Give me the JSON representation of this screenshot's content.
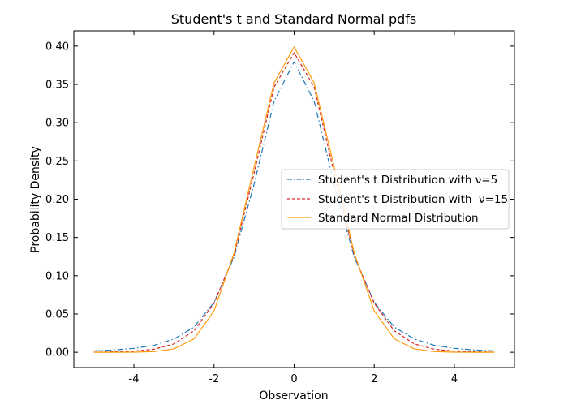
{
  "chart_data": {
    "type": "line",
    "title": "Student's t and Standard Normal pdfs",
    "xlabel": "Observation",
    "ylabel": "Probability Density",
    "xlim": [
      -5.5,
      5.5
    ],
    "ylim": [
      -0.02,
      0.42
    ],
    "x_ticks": [
      -4,
      -2,
      0,
      2,
      4
    ],
    "x_tick_labels": [
      "-4",
      "-2",
      "0",
      "2",
      "4"
    ],
    "y_ticks": [
      0.0,
      0.05,
      0.1,
      0.15,
      0.2,
      0.25,
      0.3,
      0.35,
      0.4
    ],
    "y_tick_labels": [
      "0.00",
      "0.05",
      "0.10",
      "0.15",
      "0.20",
      "0.25",
      "0.30",
      "0.35",
      "0.40"
    ],
    "grid": false,
    "legend_position": "center-right",
    "x": [
      -5,
      -4.5,
      -4,
      -3.5,
      -3,
      -2.5,
      -2,
      -1.5,
      -1,
      -0.5,
      0,
      0.5,
      1,
      1.5,
      2,
      2.5,
      3,
      3.5,
      4,
      4.5,
      5
    ],
    "series": [
      {
        "name": "Student's t Distribution with ν=5",
        "color": "#1f77b4",
        "style": "dashdot",
        "values": [
          0.0018,
          0.003,
          0.0051,
          0.0091,
          0.0173,
          0.0329,
          0.0651,
          0.1245,
          0.2197,
          0.3279,
          0.3796,
          0.3279,
          0.2197,
          0.1245,
          0.0651,
          0.0329,
          0.0173,
          0.0091,
          0.0051,
          0.003,
          0.0018
        ]
      },
      {
        "name": "Student's t Distribution with  ν=15",
        "color": "#d62728",
        "style": "dashed",
        "values": [
          0.0002,
          0.0006,
          0.0015,
          0.004,
          0.0109,
          0.0281,
          0.064,
          0.1268,
          0.234,
          0.3465,
          0.3915,
          0.3465,
          0.234,
          0.1268,
          0.064,
          0.0281,
          0.0109,
          0.004,
          0.0015,
          0.0006,
          0.0002
        ]
      },
      {
        "name": "Standard Normal Distribution",
        "color": "#ff9a0e",
        "style": "solid",
        "values": [
          1.5e-06,
          1.6e-05,
          0.000134,
          0.000873,
          0.00443,
          0.01753,
          0.05399,
          0.12952,
          0.24197,
          0.35207,
          0.39894,
          0.35207,
          0.24197,
          0.12952,
          0.05399,
          0.01753,
          0.00443,
          0.000873,
          0.000134,
          1.6e-05,
          1.5e-06
        ]
      }
    ]
  }
}
